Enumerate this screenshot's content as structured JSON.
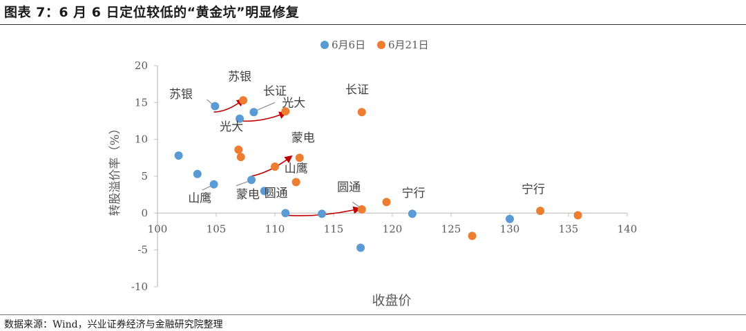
{
  "header": {
    "title": "图表 7：6 月 6 日定位较低的“黄金坑”明显修复"
  },
  "footer": {
    "source": "数据来源：Wind，兴业证券经济与金融研究院整理"
  },
  "colors": {
    "series1": "#5b9bd5",
    "series2": "#ed7d31",
    "arrow": "#c00000",
    "axis": "#bfbfbf",
    "text": "#595959"
  },
  "chart_data": {
    "type": "scatter",
    "title": "",
    "xlabel": "收盘价",
    "ylabel": "转股溢价率（%）",
    "xlim": [
      100,
      140
    ],
    "ylim": [
      -10,
      20
    ],
    "x_ticks": [
      "100",
      "105",
      "110",
      "115",
      "120",
      "125",
      "130",
      "135",
      "140"
    ],
    "y_ticks": [
      "20",
      "15",
      "10",
      "5",
      "0",
      "-5",
      "-10"
    ],
    "legend_position": "top-center",
    "grid": false,
    "series": [
      {
        "name": "6月6日",
        "color": "#5b9bd5",
        "points": [
          {
            "x": 101.8,
            "y": 7.8
          },
          {
            "x": 103.4,
            "y": 5.3
          },
          {
            "x": 104.8,
            "y": 3.9
          },
          {
            "x": 104.9,
            "y": 14.5
          },
          {
            "x": 107.0,
            "y": 12.8
          },
          {
            "x": 108.2,
            "y": 13.7
          },
          {
            "x": 108.0,
            "y": 4.5
          },
          {
            "x": 109.1,
            "y": 3.0
          },
          {
            "x": 110.9,
            "y": 0.0
          },
          {
            "x": 114.0,
            "y": -0.1
          },
          {
            "x": 117.3,
            "y": -4.7
          },
          {
            "x": 121.7,
            "y": -0.1
          },
          {
            "x": 130.0,
            "y": -0.8
          }
        ]
      },
      {
        "name": "6月21日",
        "color": "#ed7d31",
        "points": [
          {
            "x": 106.9,
            "y": 8.6
          },
          {
            "x": 107.1,
            "y": 7.6
          },
          {
            "x": 107.3,
            "y": 15.3
          },
          {
            "x": 110.9,
            "y": 13.8
          },
          {
            "x": 110.0,
            "y": 6.3
          },
          {
            "x": 112.1,
            "y": 7.5
          },
          {
            "x": 111.8,
            "y": 4.2
          },
          {
            "x": 117.4,
            "y": 13.7
          },
          {
            "x": 117.4,
            "y": 0.5
          },
          {
            "x": 119.5,
            "y": 1.5
          },
          {
            "x": 126.8,
            "y": -3.1
          },
          {
            "x": 132.6,
            "y": 0.3
          },
          {
            "x": 135.8,
            "y": -0.3
          }
        ]
      }
    ],
    "annotations": [
      {
        "text": "苏银",
        "x": 102.0,
        "y": 15.6
      },
      {
        "text": "苏银",
        "x": 107.0,
        "y": 18.0
      },
      {
        "text": "长证",
        "x": 110.0,
        "y": 16.0
      },
      {
        "text": "光大",
        "x": 111.6,
        "y": 14.4
      },
      {
        "text": "光大",
        "x": 106.3,
        "y": 11.2
      },
      {
        "text": "长证",
        "x": 117.0,
        "y": 16.2
      },
      {
        "text": "蒙电",
        "x": 112.4,
        "y": 9.7
      },
      {
        "text": "山鹰",
        "x": 111.8,
        "y": 5.5
      },
      {
        "text": "山鹰",
        "x": 103.6,
        "y": 1.5
      },
      {
        "text": "蒙电",
        "x": 107.7,
        "y": 2.0
      },
      {
        "text": "圆通",
        "x": 110.1,
        "y": 2.2
      },
      {
        "text": "圆通",
        "x": 116.3,
        "y": 3.0
      },
      {
        "text": "宁行",
        "x": 121.8,
        "y": 2.2
      },
      {
        "text": "宁行",
        "x": 132.0,
        "y": 2.7
      }
    ],
    "leader_lines": [
      {
        "from": [
          104.2,
          15.4
        ],
        "to": [
          104.8,
          14.6
        ]
      },
      {
        "from": [
          110.0,
          15.0
        ],
        "to": [
          108.4,
          13.9
        ]
      },
      {
        "from": [
          106.7,
          3.7
        ],
        "to": [
          107.9,
          4.4
        ]
      },
      {
        "from": [
          103.8,
          3.1
        ],
        "to": [
          104.7,
          3.8
        ]
      },
      {
        "from": [
          116.6,
          1.5
        ],
        "to": [
          117.3,
          0.7
        ]
      }
    ],
    "arrows": [
      {
        "from": [
          104.8,
          13.7
        ],
        "to": [
          107.3,
          15.4
        ]
      },
      {
        "from": [
          107.0,
          12.5
        ],
        "to": [
          110.9,
          13.6
        ]
      },
      {
        "from": [
          108.0,
          5.0
        ],
        "to": [
          111.4,
          7.7
        ]
      },
      {
        "from": [
          110.9,
          -0.3
        ],
        "to": [
          117.2,
          0.6
        ]
      }
    ]
  }
}
